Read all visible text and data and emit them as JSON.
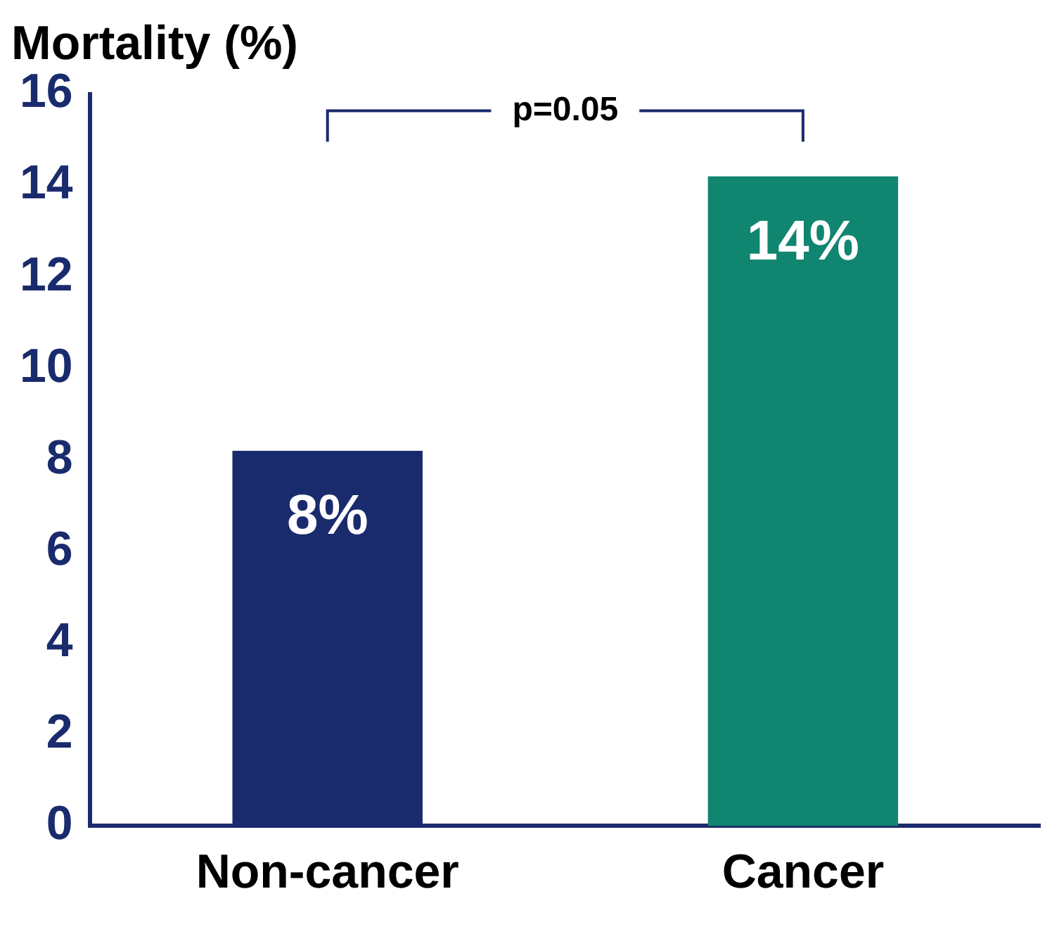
{
  "chart_data": {
    "type": "bar",
    "ylabel": "Mortality (%)",
    "categories": [
      "Non-cancer",
      "Cancer"
    ],
    "values": [
      8.2,
      14.2
    ],
    "colors": [
      "#1a2b6d",
      "#108570"
    ],
    "value_labels": [
      "8%",
      "14%"
    ],
    "ylim": [
      0,
      16
    ],
    "yticks": [
      0,
      2,
      4,
      6,
      8,
      10,
      12,
      14,
      16
    ],
    "grid": false,
    "legend": false,
    "annotations": [
      "p=0.05"
    ]
  }
}
